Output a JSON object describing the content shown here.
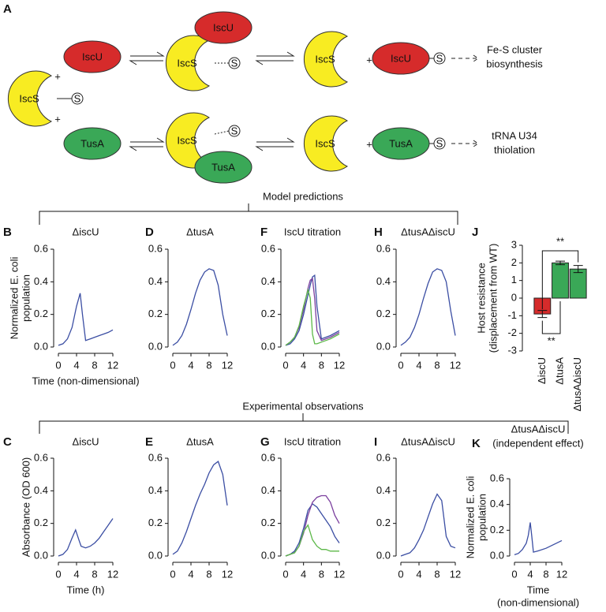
{
  "diagram": {
    "label": "A",
    "iscs": "IscS",
    "iscu": "IscU",
    "tusa": "TusA",
    "sulfur": "S",
    "plus": "+",
    "outcome_top": [
      "Fe-S cluster",
      "biosynthesis"
    ],
    "outcome_bottom": [
      "tRNA U34",
      "thiolation"
    ]
  },
  "sections": [
    "Model predictions",
    "Experimental observations"
  ],
  "chart_data": [
    {
      "type": "line",
      "label": "B",
      "title": [
        "ΔiscU"
      ],
      "ylabel": [
        "Normalized E. coli",
        "population"
      ],
      "xlabel": [
        "Time (non-dimensional)"
      ],
      "x": [
        0,
        1,
        2,
        3,
        4,
        4.8,
        5.3,
        6,
        7,
        8,
        9,
        10,
        11,
        12
      ],
      "series": [
        {
          "color": "#3b4ea3",
          "values": [
            0.01,
            0.02,
            0.05,
            0.12,
            0.25,
            0.33,
            0.2,
            0.04,
            0.05,
            0.06,
            0.07,
            0.08,
            0.09,
            0.105
          ]
        }
      ],
      "xlim": [
        0,
        12
      ],
      "ylim": [
        0,
        0.6
      ],
      "xticks": [
        0,
        4,
        8,
        12
      ],
      "yticks": [
        {
          "value": 0,
          "label": "0.0"
        },
        0.2,
        0.4,
        0.6
      ]
    },
    {
      "type": "line",
      "label": "D",
      "title": [
        "ΔtusA"
      ],
      "x": [
        0,
        1,
        2,
        3,
        4,
        5,
        6,
        7,
        8,
        9,
        10,
        11,
        12
      ],
      "series": [
        {
          "color": "#3b4ea3",
          "values": [
            0.01,
            0.03,
            0.07,
            0.14,
            0.23,
            0.33,
            0.41,
            0.46,
            0.48,
            0.47,
            0.38,
            0.2,
            0.07
          ]
        }
      ],
      "xlim": [
        0,
        12
      ],
      "ylim": [
        0,
        0.6
      ],
      "xticks": [
        0,
        4,
        8,
        12
      ],
      "yticks": [
        {
          "value": 0,
          "label": "0.0"
        },
        0.2,
        0.4,
        0.6
      ]
    },
    {
      "type": "line",
      "label": "F",
      "title": [
        "IscU titration"
      ],
      "x": [
        0,
        1,
        2,
        3,
        4,
        5,
        5.5,
        6,
        6.5,
        7,
        8,
        10,
        12
      ],
      "series": [
        {
          "color": "#3b4ea3",
          "values": [
            0.01,
            0.02,
            0.05,
            0.1,
            0.2,
            0.32,
            0.38,
            0.43,
            0.44,
            0.25,
            0.05,
            0.07,
            0.1
          ]
        },
        {
          "color": "#7b3f9e",
          "values": [
            0.01,
            0.03,
            0.06,
            0.12,
            0.23,
            0.36,
            0.41,
            0.42,
            0.3,
            0.1,
            0.04,
            0.06,
            0.09
          ]
        },
        {
          "color": "#5cb848",
          "values": [
            0.01,
            0.03,
            0.06,
            0.13,
            0.25,
            0.35,
            0.3,
            0.08,
            0.02,
            0.02,
            0.03,
            0.05,
            0.08
          ]
        }
      ],
      "xlim": [
        0,
        12
      ],
      "ylim": [
        0,
        0.6
      ],
      "xticks": [
        0,
        4,
        8,
        12
      ],
      "yticks": [
        {
          "value": 0,
          "label": "0.0"
        },
        0.2,
        0.4,
        0.6
      ]
    },
    {
      "type": "line",
      "label": "H",
      "title": [
        "ΔtusAΔiscU"
      ],
      "x": [
        0,
        1,
        2,
        3,
        4,
        5,
        6,
        7,
        8,
        9,
        10,
        11,
        12
      ],
      "series": [
        {
          "color": "#3b4ea3",
          "values": [
            0.01,
            0.03,
            0.06,
            0.12,
            0.2,
            0.3,
            0.39,
            0.46,
            0.48,
            0.47,
            0.4,
            0.22,
            0.07
          ]
        }
      ],
      "xlim": [
        0,
        12
      ],
      "ylim": [
        0,
        0.6
      ],
      "xticks": [
        0,
        4,
        8,
        12
      ],
      "yticks": [
        {
          "value": 0,
          "label": "0.0"
        },
        0.2,
        0.4,
        0.6
      ]
    },
    {
      "type": "bar",
      "label": "J",
      "ylabel": [
        "Host resistance",
        "(displacement from WT)"
      ],
      "categories": [
        "ΔiscU",
        "ΔtusA",
        "ΔtusAΔiscU"
      ],
      "values": [
        -0.9,
        2.0,
        1.65
      ],
      "errors": [
        0.2,
        0.1,
        0.2
      ],
      "colors": [
        "#d62b2b",
        "#3aa857",
        "#3aa857"
      ],
      "ylim": [
        -3,
        3
      ],
      "yticks": [
        -3,
        -2,
        -1,
        0,
        1,
        2,
        3
      ],
      "significance": [
        "**",
        "**"
      ]
    },
    {
      "type": "line",
      "label": "C",
      "title": [
        "ΔiscU"
      ],
      "ylabel": [
        "Absorbance (OD 600)"
      ],
      "xlabel": [
        "Time (h)"
      ],
      "x": [
        0,
        1,
        2,
        3,
        3.8,
        4.5,
        5,
        6,
        7,
        8,
        9,
        10,
        11,
        12
      ],
      "series": [
        {
          "color": "#3b4ea3",
          "values": [
            0,
            0.01,
            0.04,
            0.11,
            0.16,
            0.1,
            0.06,
            0.05,
            0.06,
            0.08,
            0.11,
            0.15,
            0.19,
            0.23
          ]
        }
      ],
      "xlim": [
        0,
        12
      ],
      "ylim": [
        0,
        0.6
      ],
      "xticks": [
        0,
        4,
        8,
        12
      ],
      "yticks": [
        {
          "value": 0,
          "label": "0.0"
        },
        0.2,
        0.4,
        0.6
      ]
    },
    {
      "type": "line",
      "label": "E",
      "title": [
        "ΔtusA"
      ],
      "x": [
        0,
        1,
        2,
        3,
        4,
        5,
        6,
        7,
        8,
        9,
        10,
        11,
        12
      ],
      "series": [
        {
          "color": "#3b4ea3",
          "values": [
            0.01,
            0.03,
            0.08,
            0.15,
            0.23,
            0.31,
            0.38,
            0.44,
            0.51,
            0.56,
            0.58,
            0.5,
            0.31
          ]
        }
      ],
      "xlim": [
        0,
        12
      ],
      "ylim": [
        0,
        0.6
      ],
      "xticks": [
        0,
        4,
        8,
        12
      ],
      "yticks": [
        {
          "value": 0,
          "label": "0.0"
        },
        0.2,
        0.4,
        0.6
      ]
    },
    {
      "type": "line",
      "label": "G",
      "title": [
        "IscU titration"
      ],
      "x": [
        0,
        1,
        2,
        3,
        4,
        5,
        6,
        7,
        8,
        9,
        10,
        11,
        12
      ],
      "series": [
        {
          "color": "#3b4ea3",
          "values": [
            0,
            0.01,
            0.03,
            0.08,
            0.17,
            0.28,
            0.32,
            0.3,
            0.26,
            0.22,
            0.18,
            0.12,
            0.08
          ]
        },
        {
          "color": "#7b3f9e",
          "values": [
            0,
            0.01,
            0.02,
            0.06,
            0.14,
            0.25,
            0.33,
            0.36,
            0.37,
            0.37,
            0.33,
            0.25,
            0.2
          ]
        },
        {
          "color": "#5cb848",
          "values": [
            0,
            0.01,
            0.02,
            0.06,
            0.15,
            0.19,
            0.1,
            0.06,
            0.04,
            0.04,
            0.03,
            0.03,
            0.03
          ]
        }
      ],
      "xlim": [
        0,
        12
      ],
      "ylim": [
        0,
        0.6
      ],
      "xticks": [
        0,
        4,
        8,
        12
      ],
      "yticks": [
        {
          "value": 0,
          "label": "0.0"
        },
        0.2,
        0.4,
        0.6
      ]
    },
    {
      "type": "line",
      "label": "I",
      "title": [
        "ΔtusAΔiscU"
      ],
      "x": [
        0,
        1,
        2,
        3,
        4,
        5,
        6,
        7,
        8,
        9,
        10,
        11,
        12
      ],
      "series": [
        {
          "color": "#3b4ea3",
          "values": [
            0,
            0.01,
            0.02,
            0.05,
            0.1,
            0.16,
            0.24,
            0.32,
            0.38,
            0.34,
            0.12,
            0.06,
            0.05
          ]
        }
      ],
      "xlim": [
        0,
        12
      ],
      "ylim": [
        0,
        0.6
      ],
      "xticks": [
        0,
        4,
        8,
        12
      ],
      "yticks": [
        {
          "value": 0,
          "label": "0.0"
        },
        0.2,
        0.4,
        0.6
      ]
    },
    {
      "type": "line",
      "label": "K",
      "title": [
        "ΔtusAΔiscU",
        "(independent effect)"
      ],
      "ylabel": [
        "Normalized E. coli",
        "population"
      ],
      "xlabel": [
        "Time",
        "(non-dimensional)"
      ],
      "x": [
        0,
        1,
        2,
        3,
        3.5,
        4,
        4.4,
        4.8,
        6,
        8,
        10,
        12
      ],
      "series": [
        {
          "color": "#3b4ea3",
          "values": [
            0.01,
            0.02,
            0.05,
            0.1,
            0.16,
            0.26,
            0.15,
            0.03,
            0.04,
            0.06,
            0.09,
            0.12
          ]
        }
      ],
      "xlim": [
        0,
        12
      ],
      "ylim": [
        0,
        0.6
      ],
      "xticks": [
        0,
        4,
        8,
        12
      ],
      "yticks": [
        {
          "value": 0,
          "label": "0.0"
        },
        0.2,
        0.4,
        0.6
      ]
    }
  ]
}
